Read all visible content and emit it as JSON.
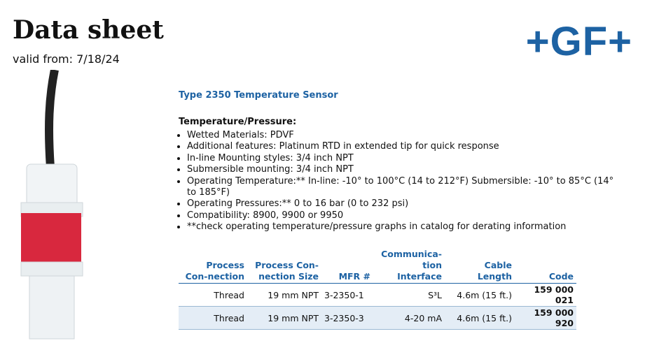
{
  "header": {
    "title": "Data sheet",
    "valid": "valid from: 7/18/24",
    "logo": "+GF+"
  },
  "product": {
    "title": "Type 2350 Temperature Sensor",
    "section": "Temperature/Pressure:",
    "bullets": [
      "Wetted Materials: PDVF",
      "Additional features: Platinum RTD in extended tip for quick response",
      "In-line Mounting styles: 3/4 inch NPT",
      "Submersible mounting: 3/4 inch NPT",
      "Operating Temperature:** In-line: -10° to 100°C (14 to 212°F) Submersible: -10° to 85°C (14° to 185°F)",
      "Operating Pressures:** 0 to 16 bar (0 to 232 psi)",
      "Compatibility: 8900, 9900 or 9950",
      "**check operating temperature/pressure graphs in catalog for derating information"
    ]
  },
  "table": {
    "headers": [
      "Process Con-nection",
      "Process Con-nection Size",
      "MFR #",
      "Communica-tion Interface",
      "Cable Length",
      "Code"
    ],
    "rows": [
      [
        "Thread",
        "19 mm NPT",
        "3-2350-1",
        "S³L",
        "4.6m (15 ft.)",
        "159 000 021"
      ],
      [
        "Thread",
        "19 mm NPT",
        "3-2350-3",
        "4-20 mA",
        "4.6m (15 ft.)",
        "159 000 920"
      ]
    ]
  }
}
